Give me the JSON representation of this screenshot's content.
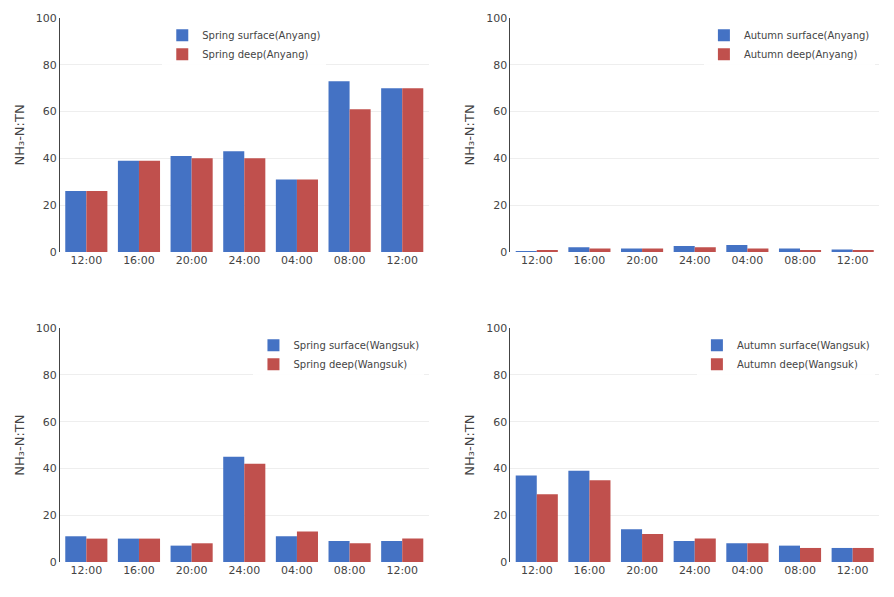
{
  "chart_data": [
    {
      "type": "bar",
      "categories": [
        "12:00",
        "16:00",
        "20:00",
        "24:00",
        "04:00",
        "08:00",
        "12:00"
      ],
      "series": [
        {
          "name": "Spring surface(Anyang)",
          "color": "#4472C4",
          "values": [
            26,
            39,
            41,
            43,
            31,
            73,
            70
          ]
        },
        {
          "name": "Spring deep(Anyang)",
          "color": "#C0504D",
          "values": [
            26,
            39,
            40,
            40,
            31,
            61,
            70
          ]
        }
      ],
      "ylabel": "NH₃-N:TN",
      "ylim": [
        0,
        100
      ],
      "yticks": [
        0,
        20,
        40,
        60,
        80,
        100
      ],
      "grid": true,
      "legend": "upper center"
    },
    {
      "type": "bar",
      "categories": [
        "12:00",
        "16:00",
        "20:00",
        "24:00",
        "04:00",
        "08:00",
        "12:00"
      ],
      "series": [
        {
          "name": "Autumn surface(Anyang)",
          "color": "#4472C4",
          "values": [
            0.3,
            2,
            1.5,
            2.5,
            3,
            1.5,
            1
          ]
        },
        {
          "name": "Autumn deep(Anyang)",
          "color": "#C0504D",
          "values": [
            0.8,
            1.5,
            1.5,
            2,
            1.5,
            0.8,
            0.8
          ]
        }
      ],
      "ylabel": "NH₃-N:TN",
      "ylim": [
        0,
        100
      ],
      "yticks": [
        0,
        20,
        40,
        60,
        80,
        100
      ],
      "grid": true,
      "legend": "upper right"
    },
    {
      "type": "bar",
      "categories": [
        "12:00",
        "16:00",
        "20:00",
        "24:00",
        "04:00",
        "08:00",
        "12:00"
      ],
      "series": [
        {
          "name": "Spring surface(Wangsuk)",
          "color": "#4472C4",
          "values": [
            11,
            10,
            7,
            45,
            11,
            9,
            9
          ]
        },
        {
          "name": "Spring deep(Wangsuk)",
          "color": "#C0504D",
          "values": [
            10,
            10,
            8,
            42,
            13,
            8,
            10
          ]
        }
      ],
      "ylabel": "NH₃-N:TN",
      "ylim": [
        0,
        100
      ],
      "yticks": [
        0,
        20,
        40,
        60,
        80,
        100
      ],
      "grid": true,
      "legend": "upper right"
    },
    {
      "type": "bar",
      "categories": [
        "12:00",
        "16:00",
        "20:00",
        "24:00",
        "04:00",
        "08:00",
        "12:00"
      ],
      "series": [
        {
          "name": "Autumn surface(Wangsuk)",
          "color": "#4472C4",
          "values": [
            37,
            39,
            14,
            9,
            8,
            7,
            6
          ]
        },
        {
          "name": "Autumn deep(Wangsuk)",
          "color": "#C0504D",
          "values": [
            29,
            35,
            12,
            10,
            8,
            6,
            6
          ]
        }
      ],
      "ylabel": "NH₃-N:TN",
      "ylim": [
        0,
        100
      ],
      "yticks": [
        0,
        20,
        40,
        60,
        80,
        100
      ],
      "grid": true,
      "legend": "upper right"
    }
  ]
}
